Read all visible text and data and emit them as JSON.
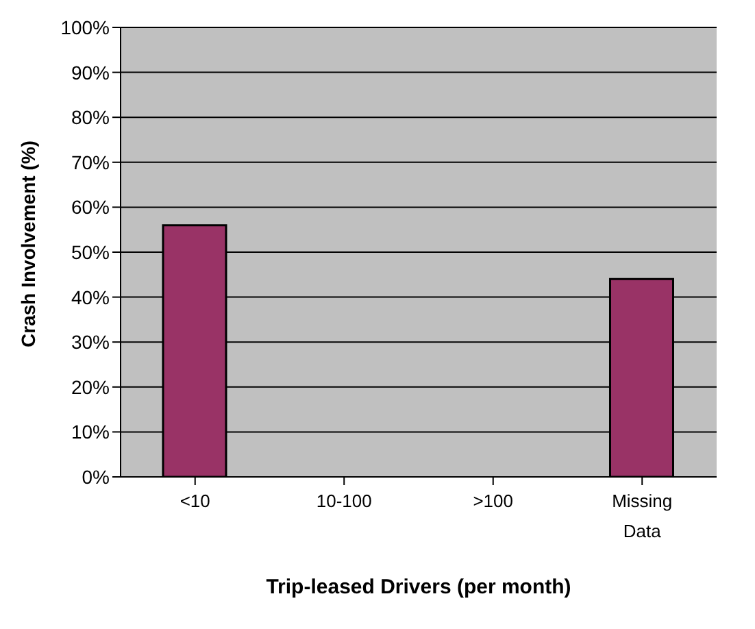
{
  "chart_data": {
    "type": "bar",
    "xlabel": "Trip-leased Drivers (per month)",
    "ylabel": "Crash Involvement (%)",
    "categories": [
      "<10",
      "10-100",
      ">100",
      "Missing Data"
    ],
    "values": [
      56,
      0,
      0,
      44
    ],
    "color": "#993366",
    "ylim": [
      0,
      100
    ],
    "yticks": [
      {
        "value": 0,
        "label": "0%"
      },
      {
        "value": 10,
        "label": "10%"
      },
      {
        "value": 20,
        "label": "20%"
      },
      {
        "value": 30,
        "label": "30%"
      },
      {
        "value": 40,
        "label": "40%"
      },
      {
        "value": 50,
        "label": "50%"
      },
      {
        "value": 60,
        "label": "60%"
      },
      {
        "value": 70,
        "label": "70%"
      },
      {
        "value": 80,
        "label": "80%"
      },
      {
        "value": 90,
        "label": "90%"
      },
      {
        "value": 100,
        "label": "100%"
      }
    ],
    "grid": "y"
  }
}
